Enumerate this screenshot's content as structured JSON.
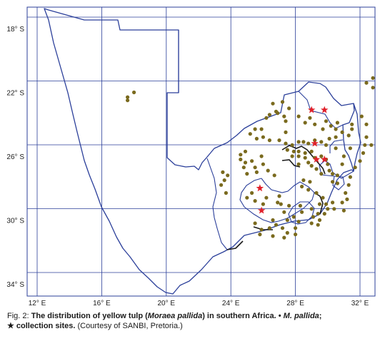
{
  "map": {
    "lat_labels": [
      "18° S",
      "22° S",
      "26° S",
      "30° S",
      "34° S"
    ],
    "lon_labels": [
      "12° E",
      "16° E",
      "20° E",
      "24° E",
      "28° E",
      "32° E"
    ],
    "colors": {
      "border": "#2b3f9a",
      "grid": "#2b3f9a",
      "occurrence_dot": "#7a6a1e",
      "collection_star": "#e0202a"
    },
    "occurrences": [
      [
        22.3,
        17.6
      ],
      [
        22.0,
        18.0
      ],
      [
        22.5,
        17.6
      ],
      [
        24.3,
        25.5
      ],
      [
        24.3,
        25.9
      ],
      [
        24.6,
        25.2
      ],
      [
        24.9,
        25.6
      ],
      [
        24.8,
        26.0
      ],
      [
        25.0,
        26.4
      ],
      [
        25.2,
        27.4
      ],
      [
        25.3,
        27.8
      ],
      [
        25.1,
        28.2
      ],
      [
        25.1,
        28.5
      ],
      [
        25.2,
        28.8
      ],
      [
        25.0,
        29.2
      ],
      [
        25.1,
        29.6
      ],
      [
        25.3,
        29.9
      ],
      [
        24.9,
        30.1
      ],
      [
        24.8,
        30.5
      ],
      [
        25.5,
        30.5
      ],
      [
        25.6,
        27.5
      ],
      [
        25.7,
        27.9
      ],
      [
        25.7,
        28.2
      ],
      [
        25.8,
        28.6
      ],
      [
        25.7,
        29.0
      ],
      [
        26.0,
        27.8
      ],
      [
        26.0,
        28.2
      ],
      [
        26.1,
        28.6
      ],
      [
        26.1,
        29.2
      ],
      [
        26.0,
        29.6
      ],
      [
        26.2,
        29.9
      ],
      [
        26.5,
        28.2
      ],
      [
        26.4,
        28.8
      ],
      [
        26.6,
        29.0
      ],
      [
        26.8,
        29.3
      ],
      [
        26.5,
        30.0
      ],
      [
        26.9,
        30.1
      ],
      [
        27.1,
        29.6
      ],
      [
        27.1,
        30.3
      ],
      [
        27.2,
        30.6
      ],
      [
        27.6,
        30.3
      ],
      [
        27.7,
        30.6
      ],
      [
        25.7,
        24.9
      ],
      [
        25.9,
        24.6
      ],
      [
        26.2,
        24.6
      ],
      [
        26.4,
        24.9
      ],
      [
        26.7,
        24.8
      ],
      [
        27.1,
        25.0
      ],
      [
        26.7,
        25.5
      ],
      [
        27.0,
        25.6
      ],
      [
        26.5,
        26.0
      ],
      [
        26.9,
        26.3
      ],
      [
        27.2,
        26.7
      ],
      [
        26.0,
        25.9
      ],
      [
        26.3,
        25.3
      ],
      [
        27.0,
        23.5
      ],
      [
        27.2,
        23.8
      ],
      [
        27.5,
        23.6
      ],
      [
        27.8,
        23.4
      ],
      [
        28.3,
        23.7
      ],
      [
        28.6,
        25.0
      ],
      [
        28.8,
        25.5
      ],
      [
        28.3,
        25.3
      ],
      [
        28.6,
        26.2
      ],
      [
        29.0,
        26.0
      ],
      [
        28.9,
        26.9
      ],
      [
        28.5,
        27.0
      ],
      [
        29.0,
        27.1
      ],
      [
        29.1,
        27.6
      ],
      [
        29.5,
        27.3
      ],
      [
        29.1,
        28.3
      ],
      [
        29.5,
        28.4
      ],
      [
        29.8,
        27.9
      ],
      [
        30.0,
        27.5
      ],
      [
        30.0,
        26.6
      ],
      [
        30.5,
        26.4
      ],
      [
        30.3,
        26.8
      ],
      [
        30.5,
        27.2
      ],
      [
        30.1,
        28.2
      ],
      [
        30.5,
        28.0
      ],
      [
        30.8,
        27.5
      ],
      [
        30.9,
        28.0
      ],
      [
        31.1,
        27.3
      ],
      [
        31.0,
        26.6
      ],
      [
        30.9,
        25.8
      ],
      [
        30.6,
        25.9
      ],
      [
        30.2,
        25.5
      ],
      [
        24.5,
        27.4
      ],
      [
        25.0,
        27.0
      ],
      [
        29.3,
        30.0
      ],
      [
        29.6,
        29.4
      ],
      [
        29.3,
        29.0
      ],
      [
        29.0,
        29.5
      ],
      [
        29.0,
        29.9
      ],
      [
        29.3,
        30.4
      ],
      [
        28.9,
        30.3
      ],
      [
        29.6,
        29.8
      ],
      [
        30.0,
        29.5
      ],
      [
        29.8,
        29.1
      ],
      [
        30.2,
        29.0
      ],
      [
        30.3,
        29.4
      ],
      [
        29.4,
        31.0
      ],
      [
        28.9,
        30.9
      ],
      [
        28.7,
        31.2
      ],
      [
        28.3,
        31.1
      ],
      [
        27.8,
        31.3
      ],
      [
        27.3,
        31.4
      ],
      [
        26.7,
        31.7
      ],
      [
        26.3,
        32.0
      ],
      [
        25.8,
        32.2
      ],
      [
        25.3,
        32.3
      ],
      [
        25.3,
        32.7
      ],
      [
        24.8,
        32.4
      ],
      [
        24.3,
        31.5
      ],
      [
        24.7,
        31.3
      ],
      [
        24.5,
        30.9
      ],
      [
        24.3,
        30.5
      ],
      [
        23.9,
        30.6
      ],
      [
        24.1,
        30.2
      ],
      [
        24.3,
        29.7
      ],
      [
        23.8,
        29.9
      ],
      [
        23.6,
        28.9
      ],
      [
        23.5,
        28.2
      ],
      [
        23.5,
        27.3
      ],
      [
        23.4,
        26.4
      ],
      [
        23.6,
        26.2
      ],
      [
        23.8,
        27.4
      ],
      [
        23.3,
        26.9
      ],
      [
        24.0,
        29.2
      ],
      [
        23.9,
        28.6
      ],
      [
        24.0,
        31.5
      ],
      [
        25.5,
        31.4
      ],
      [
        26.0,
        31.0
      ],
      [
        26.5,
        30.9
      ],
      [
        27.5,
        28.5
      ],
      [
        27.6,
        28.9
      ],
      [
        27.9,
        28.4
      ],
      [
        28.1,
        28.8
      ],
      [
        28.3,
        29.3
      ],
      [
        28.6,
        29.7
      ],
      [
        23.2,
        26.8
      ],
      [
        22.7,
        26.6
      ],
      [
        22.6,
        27.2
      ],
      [
        23.0,
        27.6
      ],
      [
        21.1,
        32.8
      ],
      [
        21.4,
        32.4
      ],
      [
        21.7,
        32.8
      ],
      [
        23.5,
        32.1
      ],
      [
        24.0,
        32.4
      ]
    ],
    "collection_sites": [
      [
        23.1,
        29.0
      ],
      [
        23.1,
        29.8
      ],
      [
        25.2,
        29.2
      ],
      [
        26.2,
        29.3
      ],
      [
        26.2,
        29.8
      ],
      [
        28.0,
        25.8
      ],
      [
        29.4,
        25.9
      ]
    ]
  },
  "caption": {
    "fig": "Fig. 2: ",
    "bold_a": "The distribution of yellow tulp (",
    "italic_a": "Moraea pallida",
    "bold_b": ") in southern Africa. •",
    "italic_b": "M. pallida",
    "bold_c": ";",
    "star_line": "★ collection sites.",
    "courtesy": "(Courtesy of SANBI, Pretoria.)"
  }
}
